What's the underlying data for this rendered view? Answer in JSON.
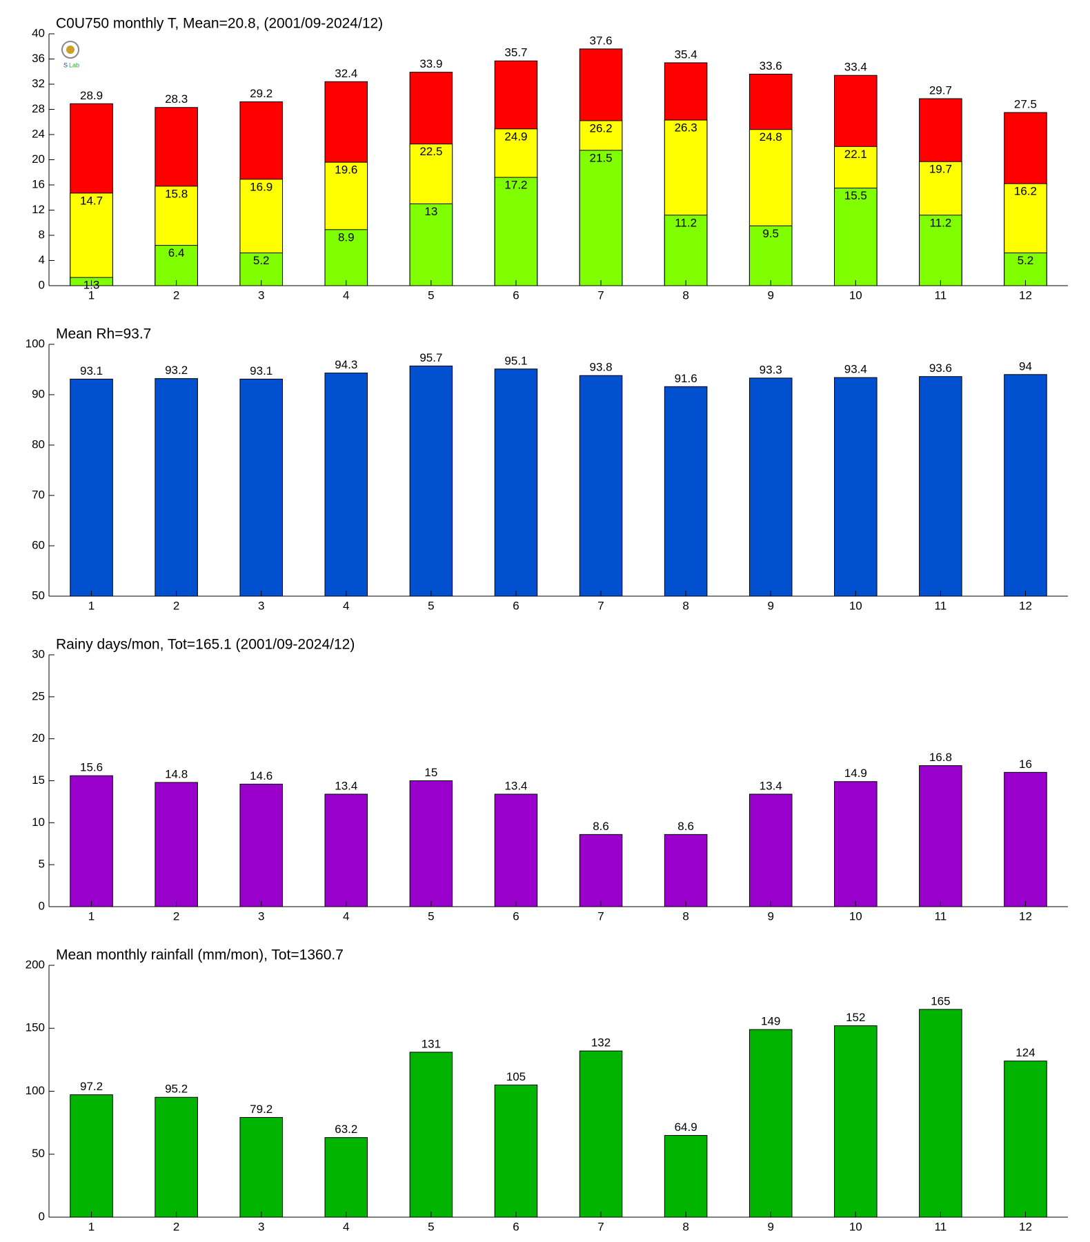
{
  "chart_data": [
    {
      "type": "bar",
      "title": "C0U750 monthly T, Mean=20.8, (2001/09-2024/12)",
      "categories": [
        "1",
        "2",
        "3",
        "4",
        "5",
        "6",
        "7",
        "8",
        "9",
        "10",
        "11",
        "12"
      ],
      "series": [
        {
          "color": "#ff0000",
          "values": [
            28.9,
            28.3,
            29.2,
            32.4,
            33.9,
            35.7,
            37.6,
            35.4,
            33.6,
            33.4,
            29.7,
            27.5
          ]
        },
        {
          "color": "#ffff00",
          "values": [
            14.7,
            15.8,
            16.9,
            19.6,
            22.5,
            24.9,
            26.2,
            26.3,
            24.8,
            22.1,
            19.7,
            16.2
          ]
        },
        {
          "color": "#80ff00",
          "values": [
            1.3,
            6.4,
            5.2,
            8.9,
            13,
            17.2,
            21.5,
            11.2,
            9.5,
            15.5,
            11.2,
            5.2
          ]
        }
      ],
      "ylim": [
        0,
        40
      ],
      "yticks": [
        0,
        4,
        8,
        12,
        16,
        20,
        24,
        28,
        32,
        36,
        40
      ]
    },
    {
      "type": "bar",
      "title": "Mean Rh=93.7",
      "categories": [
        "1",
        "2",
        "3",
        "4",
        "5",
        "6",
        "7",
        "8",
        "9",
        "10",
        "11",
        "12"
      ],
      "series": [
        {
          "color": "#0050d0",
          "values": [
            93.1,
            93.2,
            93.1,
            94.3,
            95.7,
            95.1,
            93.8,
            91.6,
            93.3,
            93.4,
            93.6,
            94
          ]
        }
      ],
      "ylim": [
        50,
        100
      ],
      "yticks": [
        50,
        60,
        70,
        80,
        90,
        100
      ]
    },
    {
      "type": "bar",
      "title": "Rainy days/mon, Tot=165.1 (2001/09-2024/12)",
      "categories": [
        "1",
        "2",
        "3",
        "4",
        "5",
        "6",
        "7",
        "8",
        "9",
        "10",
        "11",
        "12"
      ],
      "series": [
        {
          "color": "#9900cc",
          "values": [
            15.6,
            14.8,
            14.6,
            13.4,
            15,
            13.4,
            8.6,
            8.6,
            13.4,
            14.9,
            16.8,
            16
          ]
        }
      ],
      "ylim": [
        0,
        30
      ],
      "yticks": [
        0,
        5,
        10,
        15,
        20,
        25,
        30
      ]
    },
    {
      "type": "bar",
      "title": "Mean monthly rainfall (mm/mon), Tot=1360.7",
      "categories": [
        "1",
        "2",
        "3",
        "4",
        "5",
        "6",
        "7",
        "8",
        "9",
        "10",
        "11",
        "12"
      ],
      "series": [
        {
          "color": "#00b400",
          "values": [
            97.2,
            95.2,
            79.2,
            63.2,
            131,
            105,
            132,
            64.9,
            149,
            152,
            165,
            124
          ]
        }
      ],
      "ylim": [
        0,
        200
      ],
      "yticks": [
        0,
        50,
        100,
        150,
        200
      ]
    }
  ]
}
